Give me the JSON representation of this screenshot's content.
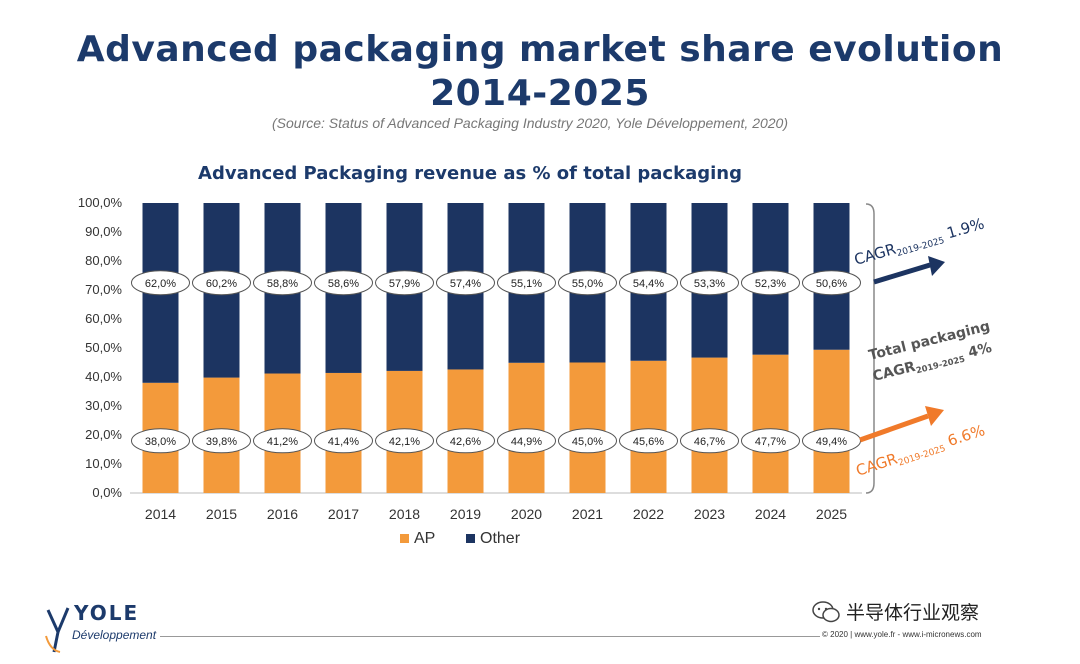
{
  "title_line1": "Advanced packaging market share evolution",
  "title_line2": "2014-2025",
  "source": "(Source: Status of Advanced Packaging Industry 2020, Yole Développement, 2020)",
  "chart_data": {
    "type": "bar",
    "stacked": true,
    "title": "Advanced Packaging revenue as % of total packaging",
    "categories": [
      "2014",
      "2015",
      "2016",
      "2017",
      "2018",
      "2019",
      "2020",
      "2021",
      "2022",
      "2023",
      "2024",
      "2025"
    ],
    "series": [
      {
        "name": "AP",
        "color": "#f39a3b",
        "values": [
          38.0,
          39.8,
          41.2,
          41.4,
          42.1,
          42.6,
          44.9,
          45.0,
          45.6,
          46.7,
          47.7,
          49.4
        ],
        "labels": [
          "38,0%",
          "39,8%",
          "41,2%",
          "41,4%",
          "42,1%",
          "42,6%",
          "44,9%",
          "45,0%",
          "45,6%",
          "46,7%",
          "47,7%",
          "49,4%"
        ]
      },
      {
        "name": "Other",
        "color": "#1c3461",
        "values": [
          62.0,
          60.2,
          58.8,
          58.6,
          57.9,
          57.4,
          55.1,
          55.0,
          54.4,
          53.3,
          52.3,
          50.6
        ],
        "labels": [
          "62,0%",
          "60,2%",
          "58,8%",
          "58,6%",
          "57,9%",
          "57,4%",
          "55,1%",
          "55,0%",
          "54,4%",
          "53,3%",
          "52,3%",
          "50,6%"
        ]
      }
    ],
    "ylim": [
      0,
      100
    ],
    "yticks": [
      "0,0%",
      "10,0%",
      "20,0%",
      "30,0%",
      "40,0%",
      "50,0%",
      "60,0%",
      "70,0%",
      "80,0%",
      "90,0%",
      "100,0%"
    ],
    "legend_position": "bottom",
    "annotations": {
      "other_cagr": {
        "prefix": "CAGR",
        "sub": "2019-2025",
        "value": " 1.9%",
        "color": "#1c3461"
      },
      "total_label": "Total packaging",
      "total_cagr": {
        "prefix": "CAGR",
        "sub": "2019-2025",
        "value": " 4%",
        "color": "#555555"
      },
      "ap_cagr": {
        "prefix": "CAGR",
        "sub": "2019-2025",
        "value": " 6.6%",
        "color": "#f07a2a"
      }
    }
  },
  "logo": {
    "name": "YOLE",
    "sub": "Développement"
  },
  "footer": "© 2020 | www.yole.fr - www.i-micronews.com",
  "watermark": "半导体行业观察"
}
